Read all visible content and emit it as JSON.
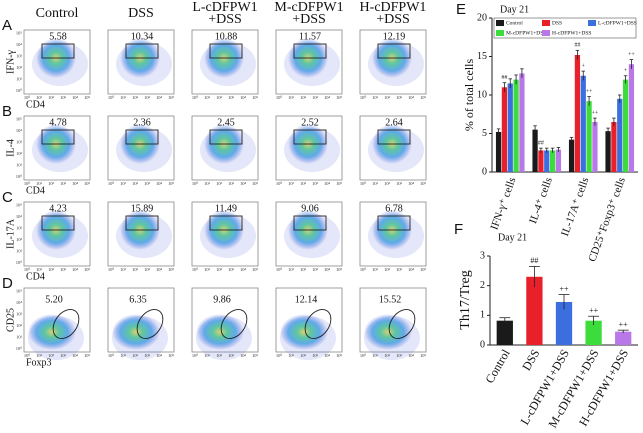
{
  "flow": {
    "columns": [
      [
        "Control"
      ],
      [
        "DSS"
      ],
      [
        "L-cDFPW1",
        "+DSS"
      ],
      [
        "M-cDFPW1",
        "+DSS"
      ],
      [
        "H-cDFPW1",
        "+DSS"
      ]
    ],
    "ticks": [
      "10⁰",
      "10¹",
      "10²",
      "10³",
      "10⁴",
      "10⁵"
    ],
    "rows": [
      {
        "letter": "A",
        "y_label": "IFN-γ",
        "x_label": "CD4",
        "gate": "rect",
        "values": [
          "5.58",
          "10.34",
          "10.88",
          "11.57",
          "12.19"
        ]
      },
      {
        "letter": "B",
        "y_label": "IL-4",
        "x_label": "CD4",
        "gate": "rect",
        "values": [
          "4.78",
          "2.36",
          "2.45",
          "2.52",
          "2.64"
        ]
      },
      {
        "letter": "C",
        "y_label": "IL-17A",
        "x_label": "CD4",
        "gate": "rect",
        "values": [
          "4.23",
          "15.89",
          "11.49",
          "9.06",
          "6.78"
        ]
      },
      {
        "letter": "D",
        "y_label": "CD25",
        "x_label": "Foxp3",
        "gate": "ellipse",
        "values": [
          "5.20",
          "6.35",
          "9.86",
          "12.14",
          "15.52"
        ]
      }
    ]
  },
  "chart_data": [
    {
      "type": "grouped_bar",
      "panel": "E",
      "title": "Day 21",
      "y_label": "% of total cells",
      "categories": [
        "IFN-γ⁺ cells",
        "IL-4⁺ cells",
        "IL-17A⁺ cells",
        "CD25⁺Foxp3⁺ cells"
      ],
      "series": [
        {
          "name": "Control",
          "color": "#1a1a1a",
          "values": [
            5.2,
            5.5,
            4.2,
            5.3
          ],
          "errors": [
            0.4,
            0.5,
            0.3,
            0.4
          ],
          "value_labels": [
            null,
            null,
            null,
            null
          ]
        },
        {
          "name": "DSS",
          "color": "#e8202a",
          "values": [
            11.0,
            2.8,
            15.2,
            6.5
          ],
          "errors": [
            0.6,
            0.3,
            0.6,
            0.5
          ],
          "value_labels": [
            "##",
            "##",
            "##",
            null
          ]
        },
        {
          "name": "L-cDFPW1+DSS",
          "color": "#3b6fe0",
          "values": [
            11.5,
            2.8,
            12.5,
            9.5
          ],
          "errors": [
            0.6,
            0.3,
            0.6,
            0.5
          ],
          "value_labels": [
            null,
            null,
            "+",
            null
          ]
        },
        {
          "name": "M-cDFPW1+DSS",
          "color": "#3ddc3d",
          "values": [
            12.0,
            2.8,
            9.2,
            12.0
          ],
          "errors": [
            0.6,
            0.3,
            0.6,
            0.5
          ],
          "value_labels": [
            null,
            null,
            "++",
            "+"
          ]
        },
        {
          "name": "H-cDFPW1+DSS",
          "color": "#b878e8",
          "values": [
            12.8,
            2.9,
            6.5,
            14.0
          ],
          "errors": [
            0.6,
            0.3,
            0.5,
            0.6
          ],
          "value_labels": [
            null,
            null,
            "++",
            "++"
          ]
        }
      ],
      "ylim": [
        0,
        20
      ],
      "yticks": [
        0,
        5,
        10,
        15,
        20
      ]
    },
    {
      "type": "bar",
      "panel": "F",
      "title": "Day 21",
      "y_label": "Th17/Treg",
      "categories": [
        "Control",
        "DSS",
        "L-cDFPW1+DSS",
        "M-cDFPW1+DSS",
        "H-cDFPW1+DSS"
      ],
      "values": [
        0.82,
        2.3,
        1.45,
        0.82,
        0.45
      ],
      "errors": [
        0.1,
        0.35,
        0.25,
        0.15,
        0.05
      ],
      "value_labels": [
        null,
        "##",
        "++",
        "++",
        "++"
      ],
      "colors": [
        "#1a1a1a",
        "#e8202a",
        "#3b6fe0",
        "#3ddc3d",
        "#b878e8"
      ],
      "ylim": [
        0,
        3
      ],
      "yticks": [
        0,
        1,
        2,
        3
      ]
    }
  ]
}
